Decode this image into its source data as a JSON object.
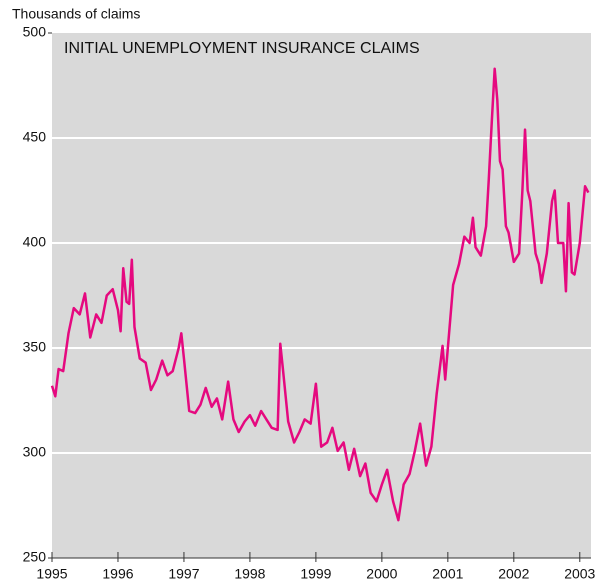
{
  "chart_data": {
    "type": "line",
    "title": "INITIAL UNEMPLOYMENT INSURANCE CLAIMS",
    "y_label": "Thousands of claims",
    "color": "#e5097f",
    "grid": true,
    "x": [
      1995.0,
      1995.05,
      1995.1,
      1995.17,
      1995.25,
      1995.33,
      1995.42,
      1995.5,
      1995.58,
      1995.67,
      1995.75,
      1995.83,
      1995.92,
      1996.0,
      1996.04,
      1996.08,
      1996.13,
      1996.17,
      1996.21,
      1996.25,
      1996.33,
      1996.42,
      1996.5,
      1996.58,
      1996.67,
      1996.75,
      1996.83,
      1996.92,
      1996.96,
      1997.0,
      1997.08,
      1997.17,
      1997.25,
      1997.33,
      1997.42,
      1997.5,
      1997.58,
      1997.67,
      1997.75,
      1997.83,
      1997.92,
      1998.0,
      1998.08,
      1998.17,
      1998.25,
      1998.33,
      1998.42,
      1998.46,
      1998.5,
      1998.58,
      1998.67,
      1998.75,
      1998.83,
      1998.92,
      1999.0,
      1999.08,
      1999.17,
      1999.25,
      1999.33,
      1999.42,
      1999.5,
      1999.58,
      1999.67,
      1999.75,
      1999.83,
      1999.92,
      2000.0,
      2000.08,
      2000.17,
      2000.25,
      2000.33,
      2000.42,
      2000.5,
      2000.58,
      2000.67,
      2000.75,
      2000.83,
      2000.92,
      2000.96,
      2001.0,
      2001.08,
      2001.17,
      2001.25,
      2001.33,
      2001.38,
      2001.42,
      2001.5,
      2001.58,
      2001.62,
      2001.67,
      2001.71,
      2001.75,
      2001.79,
      2001.83,
      2001.88,
      2001.92,
      2002.0,
      2002.08,
      2002.13,
      2002.17,
      2002.21,
      2002.25,
      2002.33,
      2002.38,
      2002.42,
      2002.5,
      2002.58,
      2002.62,
      2002.67,
      2002.75,
      2002.79,
      2002.83,
      2002.88,
      2002.92,
      2003.0,
      2003.08,
      2003.13
    ],
    "values": [
      332,
      327,
      340,
      339,
      357,
      369,
      366,
      376,
      355,
      366,
      362,
      375,
      378,
      368,
      358,
      388,
      372,
      371,
      392,
      360,
      345,
      343,
      330,
      335,
      344,
      337,
      339,
      350,
      357,
      345,
      320,
      319,
      323,
      331,
      322,
      326,
      316,
      334,
      316,
      310,
      315,
      318,
      313,
      320,
      316,
      312,
      311,
      352,
      340,
      315,
      305,
      310,
      316,
      314,
      333,
      303,
      305,
      312,
      301,
      305,
      292,
      302,
      289,
      295,
      281,
      277,
      285,
      292,
      277,
      268,
      285,
      290,
      301,
      314,
      294,
      303,
      328,
      351,
      335,
      350,
      380,
      390,
      403,
      400,
      412,
      398,
      394,
      408,
      430,
      460,
      483,
      468,
      439,
      435,
      408,
      405,
      391,
      395,
      425,
      454,
      425,
      420,
      395,
      390,
      381,
      395,
      420,
      425,
      400,
      400,
      377,
      419,
      386,
      385,
      400,
      427,
      424
    ],
    "xlim": [
      1995,
      2003.17
    ],
    "xticks": [
      1995,
      1996,
      1997,
      1998,
      1999,
      2000,
      2001,
      2002,
      2003
    ],
    "ylim": [
      250,
      500
    ],
    "yticks": [
      250,
      300,
      350,
      400,
      450,
      500
    ]
  }
}
